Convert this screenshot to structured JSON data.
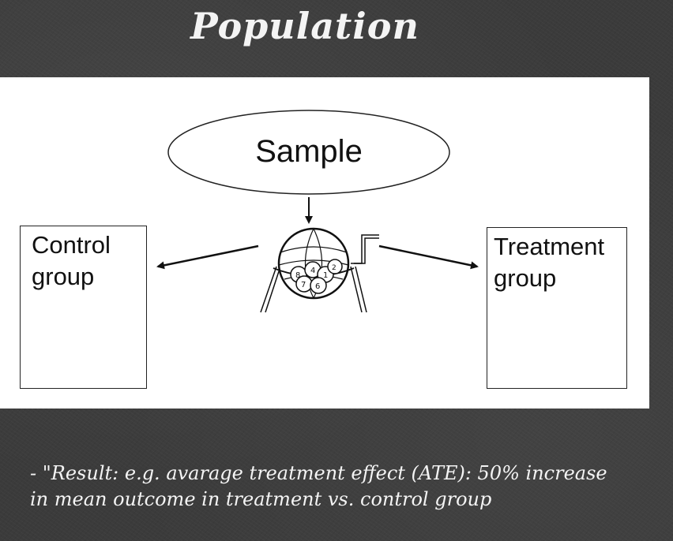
{
  "title": "Population",
  "diagram": {
    "sample_label": "Sample",
    "control_group": {
      "line1": "Control",
      "line2": "group"
    },
    "treatment_group": {
      "line1": "Treatment",
      "line2": "group"
    },
    "lottery_ball_numbers": [
      "8",
      "4",
      "2",
      "7",
      "1",
      "6"
    ]
  },
  "note": {
    "line1": "- \"Result: e.g. avarage treatment effect (ATE): 50% increase",
    "line2": "in mean outcome in treatment vs. control group"
  }
}
